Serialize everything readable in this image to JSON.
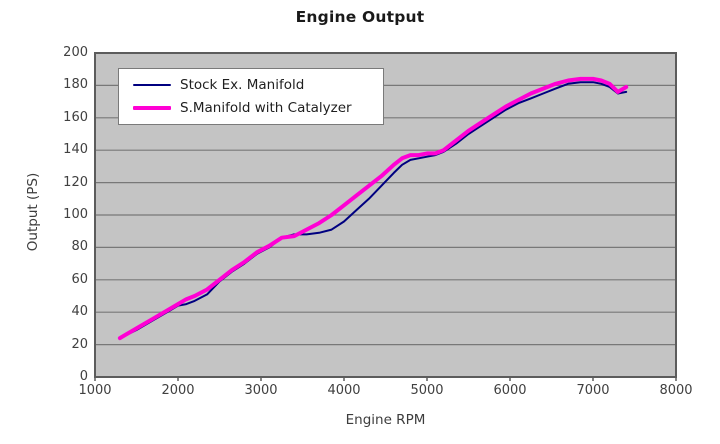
{
  "title": "Engine Output",
  "legend": {
    "items": [
      {
        "label": "Stock Ex. Manifold"
      },
      {
        "label": "S.Manifold with Catalyzer"
      }
    ]
  },
  "colors": {
    "plot_background": "#c4c4c4",
    "plot_border": "#5c5c5c",
    "gridline": "#787878",
    "stock_line": "#000080",
    "catalyzer_line": "#ff00d4",
    "text": "#404040"
  },
  "chart_data": {
    "type": "line",
    "title": "Engine Output",
    "xlabel": "Engine RPM",
    "ylabel": "Output (PS)",
    "xlim": [
      1000,
      8000
    ],
    "ylim": [
      0,
      200
    ],
    "x_ticks": [
      1000,
      2000,
      3000,
      4000,
      5000,
      6000,
      7000,
      8000
    ],
    "y_ticks": [
      0,
      20,
      40,
      60,
      80,
      100,
      120,
      140,
      160,
      180,
      200
    ],
    "grid": "horizontal",
    "legend_position": "top-left-inside",
    "x": [
      1300,
      1500,
      1700,
      1900,
      2000,
      2100,
      2200,
      2350,
      2500,
      2650,
      2800,
      2950,
      3100,
      3250,
      3400,
      3550,
      3700,
      3850,
      4000,
      4150,
      4300,
      4450,
      4600,
      4700,
      4800,
      4900,
      5000,
      5100,
      5200,
      5350,
      5500,
      5650,
      5800,
      5950,
      6100,
      6250,
      6400,
      6550,
      6700,
      6850,
      7000,
      7100,
      7200,
      7300,
      7400
    ],
    "series": [
      {
        "name": "Stock Ex. Manifold",
        "color": "#000080",
        "stroke_width": 2,
        "values": [
          24,
          29,
          35,
          41,
          44,
          45,
          47,
          51,
          59,
          65,
          70,
          76,
          80,
          86,
          88,
          88,
          89,
          91,
          96,
          103,
          110,
          118,
          126,
          131,
          134,
          135,
          136,
          137,
          139,
          144,
          150,
          155,
          160,
          165,
          169,
          172,
          175,
          178,
          181,
          182,
          182,
          181,
          179,
          175,
          176
        ]
      },
      {
        "name": "S.Manifold with Catalyzer",
        "color": "#ff00d4",
        "stroke_width": 4,
        "values": [
          24,
          30,
          36,
          42,
          45,
          48,
          50,
          54,
          60,
          66,
          71,
          77,
          81,
          86,
          87,
          91,
          95,
          100,
          106,
          112,
          118,
          124,
          131,
          135,
          137,
          137,
          138,
          138,
          140,
          146,
          152,
          157,
          162,
          167,
          171,
          175,
          178,
          181,
          183,
          184,
          184,
          183,
          181,
          176,
          179
        ]
      }
    ]
  }
}
